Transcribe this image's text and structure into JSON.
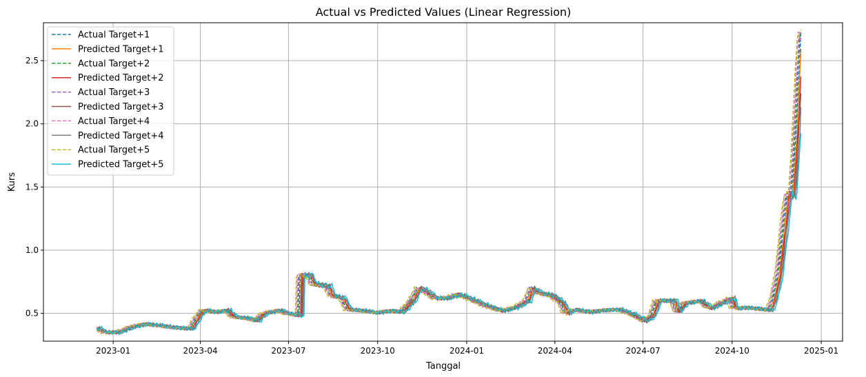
{
  "chart_data": {
    "type": "line",
    "title": "Actual vs Predicted Values (Linear Regression)",
    "xlabel": "Tanggal",
    "ylabel": "Kurs",
    "xlim": [
      "2022-10-21",
      "2025-01-23"
    ],
    "ylim": [
      0.28,
      2.8
    ],
    "grid": true,
    "legend_position": "top-left",
    "x_ticks": [
      "2023-01",
      "2023-04",
      "2023-07",
      "2023-10",
      "2024-01",
      "2024-04",
      "2024-07",
      "2024-10",
      "2025-01"
    ],
    "y_ticks": [
      0.5,
      1.0,
      1.5,
      2.0,
      2.5
    ],
    "y_tick_labels": [
      "0.5",
      "1.0",
      "1.5",
      "2.0",
      "2.5"
    ],
    "base_series": [
      [
        "2022-12-15",
        0.38
      ],
      [
        "2022-12-22",
        0.35
      ],
      [
        "2023-01-05",
        0.35
      ],
      [
        "2023-01-18",
        0.39
      ],
      [
        "2023-02-01",
        0.415
      ],
      [
        "2023-02-15",
        0.405
      ],
      [
        "2023-03-01",
        0.39
      ],
      [
        "2023-03-15",
        0.38
      ],
      [
        "2023-03-22",
        0.38
      ],
      [
        "2023-03-27",
        0.45
      ],
      [
        "2023-04-03",
        0.525
      ],
      [
        "2023-04-15",
        0.51
      ],
      [
        "2023-04-28",
        0.525
      ],
      [
        "2023-05-05",
        0.47
      ],
      [
        "2023-05-20",
        0.46
      ],
      [
        "2023-05-28",
        0.44
      ],
      [
        "2023-06-05",
        0.5
      ],
      [
        "2023-06-20",
        0.525
      ],
      [
        "2023-06-28",
        0.5
      ],
      [
        "2023-07-12",
        0.48
      ],
      [
        "2023-07-13",
        0.8
      ],
      [
        "2023-07-22",
        0.8
      ],
      [
        "2023-07-26",
        0.73
      ],
      [
        "2023-08-10",
        0.715
      ],
      [
        "2023-08-14",
        0.64
      ],
      [
        "2023-08-25",
        0.62
      ],
      [
        "2023-08-31",
        0.53
      ],
      [
        "2023-09-15",
        0.52
      ],
      [
        "2023-09-28",
        0.505
      ],
      [
        "2023-10-12",
        0.52
      ],
      [
        "2023-10-25",
        0.51
      ],
      [
        "2023-11-05",
        0.6
      ],
      [
        "2023-11-12",
        0.7
      ],
      [
        "2023-11-20",
        0.67
      ],
      [
        "2023-11-28",
        0.62
      ],
      [
        "2023-12-10",
        0.62
      ],
      [
        "2023-12-22",
        0.65
      ],
      [
        "2024-01-05",
        0.61
      ],
      [
        "2024-01-20",
        0.56
      ],
      [
        "2024-02-05",
        0.52
      ],
      [
        "2024-02-20",
        0.55
      ],
      [
        "2024-03-03",
        0.6
      ],
      [
        "2024-03-08",
        0.7
      ],
      [
        "2024-03-15",
        0.66
      ],
      [
        "2024-03-28",
        0.64
      ],
      [
        "2024-04-08",
        0.58
      ],
      [
        "2024-04-12",
        0.5
      ],
      [
        "2024-04-20",
        0.53
      ],
      [
        "2024-05-05",
        0.51
      ],
      [
        "2024-05-20",
        0.525
      ],
      [
        "2024-06-05",
        0.53
      ],
      [
        "2024-06-20",
        0.49
      ],
      [
        "2024-06-28",
        0.455
      ],
      [
        "2024-07-02",
        0.44
      ],
      [
        "2024-07-10",
        0.48
      ],
      [
        "2024-07-15",
        0.6
      ],
      [
        "2024-08-01",
        0.6
      ],
      [
        "2024-08-05",
        0.51
      ],
      [
        "2024-08-12",
        0.58
      ],
      [
        "2024-08-28",
        0.6
      ],
      [
        "2024-09-08",
        0.54
      ],
      [
        "2024-09-18",
        0.58
      ],
      [
        "2024-09-30",
        0.62
      ],
      [
        "2024-10-02",
        0.54
      ],
      [
        "2024-10-15",
        0.545
      ],
      [
        "2024-10-28",
        0.535
      ],
      [
        "2024-11-08",
        0.525
      ],
      [
        "2024-11-12",
        0.6
      ],
      [
        "2024-11-18",
        0.82
      ],
      [
        "2024-11-22",
        1.1
      ],
      [
        "2024-11-27",
        1.43
      ],
      [
        "2024-12-02",
        1.45
      ],
      [
        "2024-12-05",
        1.8
      ],
      [
        "2024-12-09",
        2.4
      ],
      [
        "2024-12-11",
        2.7
      ]
    ],
    "series": [
      {
        "name": "Actual Target+1",
        "color": "#1f77b4",
        "dash": true,
        "shift_days": 0,
        "wobble": 0.006
      },
      {
        "name": "Predicted Target+1",
        "color": "#ff7f0e",
        "dash": false,
        "shift_days": 1,
        "wobble": 0.008
      },
      {
        "name": "Actual Target+2",
        "color": "#2ca02c",
        "dash": true,
        "shift_days": -1,
        "wobble": 0.005
      },
      {
        "name": "Predicted Target+2",
        "color": "#d62728",
        "dash": false,
        "shift_days": 2,
        "wobble": 0.009
      },
      {
        "name": "Actual Target+3",
        "color": "#9467bd",
        "dash": true,
        "shift_days": -2,
        "wobble": 0.006
      },
      {
        "name": "Predicted Target+3",
        "color": "#8c564b",
        "dash": false,
        "shift_days": 3,
        "wobble": 0.01
      },
      {
        "name": "Actual Target+4",
        "color": "#e377c2",
        "dash": true,
        "shift_days": -3,
        "wobble": 0.007
      },
      {
        "name": "Predicted Target+4",
        "color": "#7f7f7f",
        "dash": false,
        "shift_days": 4,
        "wobble": 0.011
      },
      {
        "name": "Actual Target+5",
        "color": "#bcbd22",
        "dash": true,
        "shift_days": -4,
        "wobble": 0.007
      },
      {
        "name": "Predicted Target+5",
        "color": "#17becf",
        "dash": false,
        "shift_days": 5,
        "wobble": 0.012
      }
    ]
  }
}
